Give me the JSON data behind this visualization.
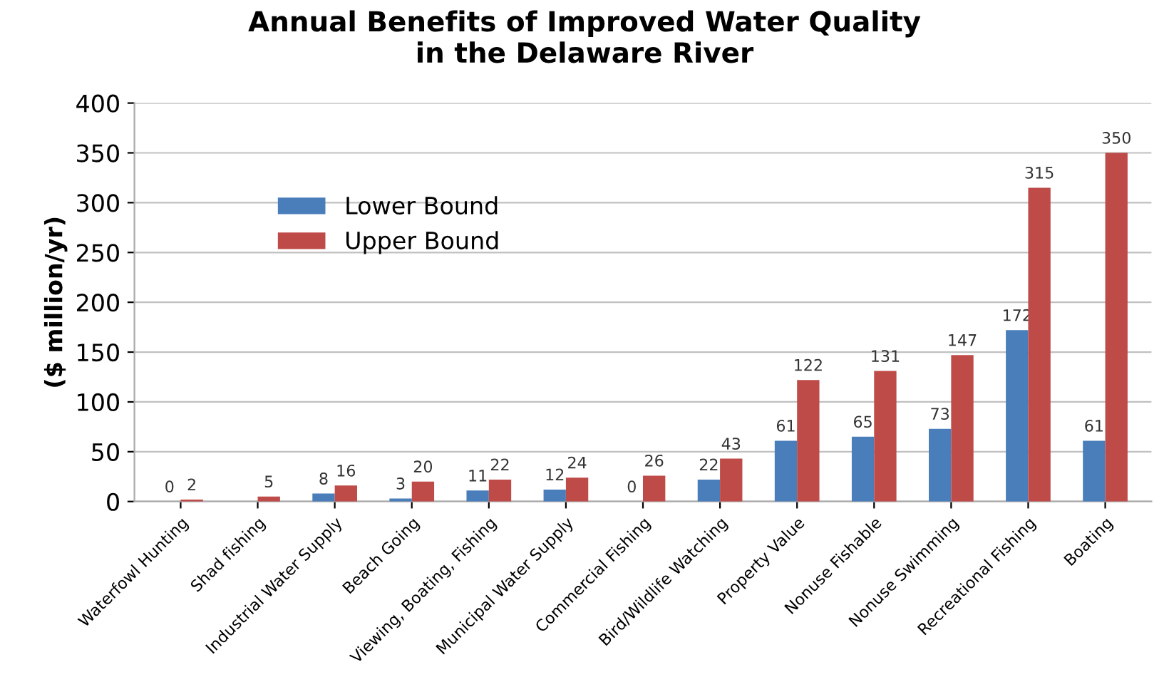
{
  "chart_data": {
    "type": "bar",
    "title": "Annual Benefits of Improved Water Quality\nin the Delaware River",
    "ylabel": "($ million/yr)",
    "categories": [
      "Waterfowl Hunting",
      "Shad fishing",
      "Industrial Water Supply",
      "Beach Going",
      "Viewing, Boating, Fishing",
      "Municipal Water Supply",
      "Commercial Fishing",
      "Bird/Wildlife Watching",
      "Property Value",
      "Nonuse Fishable",
      "Nonuse Swimming",
      "Recreational Fishing",
      "Boating"
    ],
    "series": [
      {
        "name": "Lower Bound",
        "color": "#4a7ebb",
        "values": [
          0,
          null,
          8,
          3,
          11,
          12,
          0,
          22,
          61,
          65,
          73,
          172,
          61
        ]
      },
      {
        "name": "Upper Bound",
        "color": "#be4b48",
        "values": [
          2,
          5,
          16,
          20,
          22,
          24,
          26,
          43,
          122,
          131,
          147,
          315,
          350
        ]
      }
    ],
    "ylim": [
      0,
      400
    ],
    "yticks": [
      0,
      50,
      100,
      150,
      200,
      250,
      300,
      350,
      400
    ],
    "grid": "y",
    "legend": "top left",
    "data_labels": true
  }
}
